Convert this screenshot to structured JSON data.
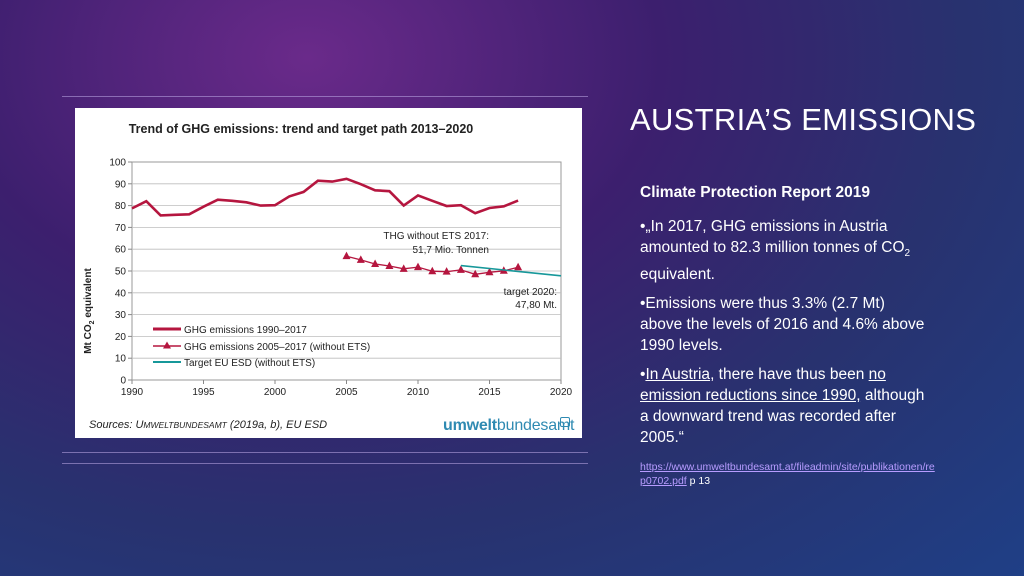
{
  "slide": {
    "title": "AUSTRIA’S EMISSIONS",
    "report_heading": "Climate Protection Report 2019",
    "para1": "•„In 2017, GHG emissions in Austria amounted to 82.3 million tonnes of",
    "para1_co2": "CO",
    "para1_sub": "2",
    "para1_tail": " equivalent.",
    "para2": "•Emissions were thus 3.3% (2.7 Mt) above the levels of 2016 and 4.6% above 1990 levels.",
    "para3_bullet": "•",
    "para3_u1": "In Austria",
    "para3_mid": ", there have thus been ",
    "para3_u2": "no emission reductions since 1990,",
    "para3_tail": " although a downward trend was recorded after 2005.“",
    "link_text": "https://www.umweltbundesamt.at/fileadmin/site/publikationen/rep0702.pdf",
    "link_suffix": " p 13"
  },
  "chart_card": {
    "source_prefix": "Sources: U",
    "source_caps": "MWELTBUNDESAMT",
    "source_suffix": " (2019a, b), EU ESD",
    "logo_bold": "umwelt",
    "logo_regular": "bundesamt"
  },
  "chart_data": {
    "type": "line",
    "title": "Trend of GHG emissions: trend and target path 2013–2020",
    "ylabel_prefix": "Mt CO",
    "ylabel_sub": "2",
    "ylabel_suffix": " equivalent",
    "xlim": [
      1990,
      2020
    ],
    "ylim": [
      0,
      100
    ],
    "x_ticks": [
      1990,
      1995,
      2000,
      2005,
      2010,
      2015,
      2020
    ],
    "y_ticks": [
      0,
      10,
      20,
      30,
      40,
      50,
      60,
      70,
      80,
      90,
      100
    ],
    "series": [
      {
        "name": "GHG emissions 1990–2017",
        "color": "#b5163f",
        "marker": "none",
        "x": [
          1990,
          1991,
          1992,
          1993,
          1994,
          1995,
          1996,
          1997,
          1998,
          1999,
          2000,
          2001,
          2002,
          2003,
          2004,
          2005,
          2006,
          2007,
          2008,
          2009,
          2010,
          2011,
          2012,
          2013,
          2014,
          2015,
          2016,
          2017
        ],
        "y": [
          78.7,
          82.0,
          75.5,
          75.8,
          76.0,
          79.5,
          82.7,
          82.2,
          81.5,
          80.0,
          80.2,
          84.2,
          86.3,
          91.4,
          91.0,
          92.3,
          89.8,
          87.0,
          86.6,
          80.0,
          84.7,
          82.2,
          79.8,
          80.2,
          76.5,
          78.9,
          79.7,
          82.3
        ]
      },
      {
        "name": "GHG emissions 2005–2017 (without ETS)",
        "color": "#b5163f",
        "marker": "triangle",
        "x": [
          2005,
          2006,
          2007,
          2008,
          2009,
          2010,
          2011,
          2012,
          2013,
          2014,
          2015,
          2016,
          2017
        ],
        "y": [
          56.8,
          55.1,
          53.2,
          52.3,
          51.0,
          51.8,
          49.9,
          49.7,
          50.5,
          48.5,
          49.4,
          50.1,
          51.7
        ]
      },
      {
        "name": "Target EU ESD (without ETS)",
        "color": "#17989a",
        "marker": "none",
        "x": [
          2013,
          2020
        ],
        "y": [
          52.5,
          47.8
        ]
      }
    ],
    "annotations": [
      {
        "line1": "THG without  ETS 2017:",
        "line2": "51,7 Mio. Tonnen"
      },
      {
        "line1": "target 2020:",
        "line2": "47,80 Mt."
      }
    ]
  }
}
